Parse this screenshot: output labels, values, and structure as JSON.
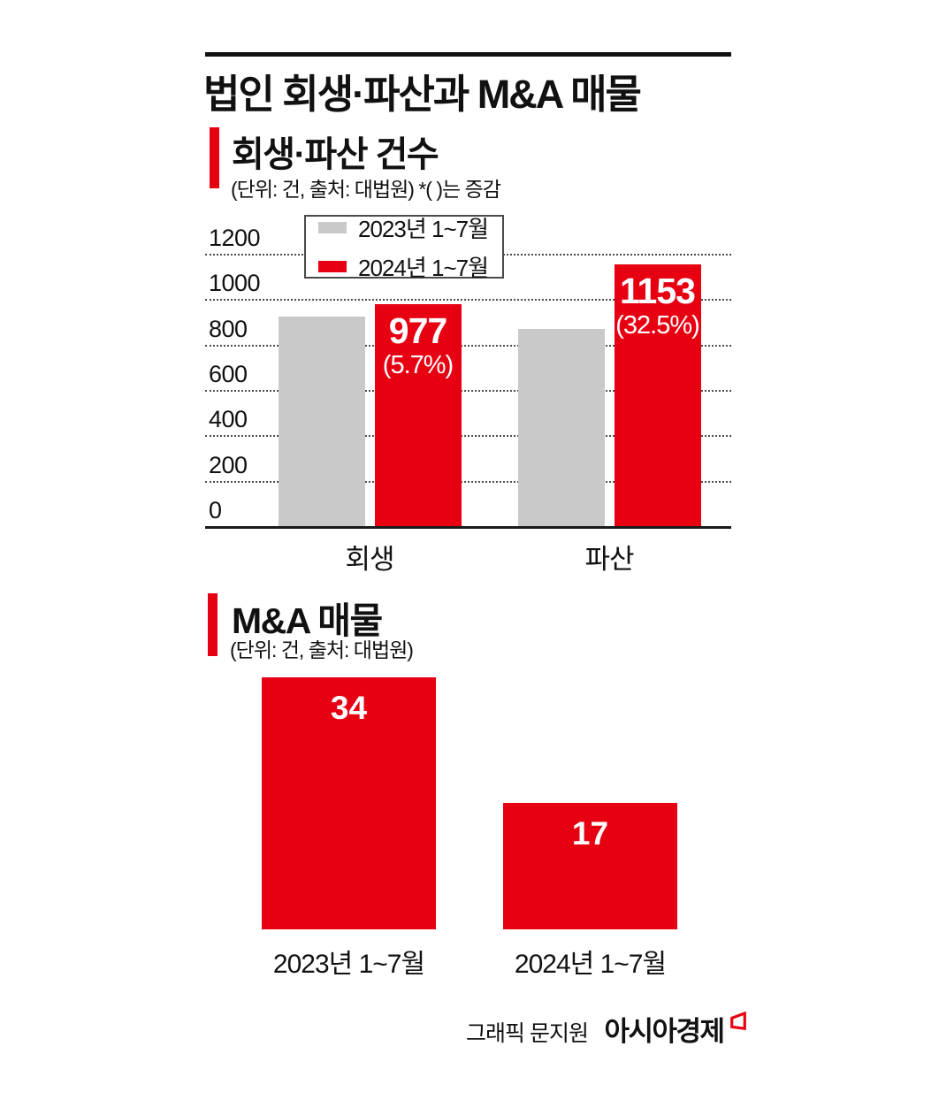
{
  "page": {
    "title": "법인 회생·파산과 M&A 매물",
    "footer": {
      "credit": "그래픽 문지원",
      "brand": "아시아경제"
    }
  },
  "colors": {
    "accent_red": "#e60012",
    "bar_gray": "#c9c9ca",
    "text_black": "#111111",
    "label_white": "#ffffff"
  },
  "chart_data": [
    {
      "id": "rehab-bankruptcy-counts",
      "type": "bar",
      "title": "회생·파산 건수",
      "subtitle": "(단위: 건, 출처: 대법원)  *( )는 증감",
      "categories": [
        "회생",
        "파산"
      ],
      "series": [
        {
          "name": "2023년 1~7월",
          "color": "#c9c9ca",
          "values": [
            924,
            870
          ],
          "estimated": true
        },
        {
          "name": "2024년 1~7월",
          "color": "#e60012",
          "values": [
            977,
            1153
          ],
          "labels": [
            {
              "value": "977",
              "change": "(5.7%)"
            },
            {
              "value": "1153",
              "change": "(32.5%)"
            }
          ]
        }
      ],
      "ylim": [
        0,
        1200
      ],
      "yticks": [
        0,
        200,
        400,
        600,
        800,
        1000,
        1200
      ],
      "grid": "horizontal-dotted",
      "legend_position": "top-left-inside"
    },
    {
      "id": "ma-listings",
      "type": "bar",
      "title": "M&A 매물",
      "subtitle": "(단위: 건, 출처: 대법원)",
      "categories": [
        "2023년 1~7월",
        "2024년 1~7월"
      ],
      "values": [
        34,
        17
      ],
      "data_labels": [
        "34",
        "17"
      ],
      "bar_color": "#e60012",
      "ylim": [
        0,
        34
      ],
      "grid": "none",
      "axis": "none"
    }
  ]
}
